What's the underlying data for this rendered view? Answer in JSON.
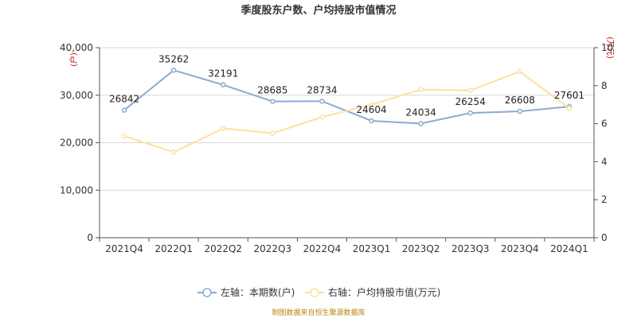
{
  "chart_data": {
    "type": "line",
    "title": "季度股东户数、户均持股市值情况",
    "categories": [
      "2021Q4",
      "2022Q1",
      "2022Q2",
      "2022Q3",
      "2022Q4",
      "2023Q1",
      "2023Q2",
      "2023Q3",
      "2023Q4",
      "2024Q1"
    ],
    "left_axis": {
      "unit": "(户)",
      "ylim": [
        0,
        40000
      ],
      "ticks": [
        0,
        10000,
        20000,
        30000,
        40000
      ],
      "tick_labels": [
        "0",
        "10,000",
        "20,000",
        "30,000",
        "40,000"
      ]
    },
    "right_axis": {
      "unit": "(万元)",
      "ylim": [
        0,
        10
      ],
      "ticks": [
        0,
        2,
        4,
        6,
        8,
        10
      ],
      "tick_labels": [
        "0",
        "2",
        "4",
        "6",
        "8",
        "10"
      ]
    },
    "series": [
      {
        "name": "左轴：本期数(户)",
        "axis": "left",
        "color": "#8eaad1",
        "values": [
          26842,
          35262,
          32191,
          28685,
          28734,
          24604,
          24034,
          26254,
          26608,
          27601
        ],
        "data_labels": [
          "26842",
          "35262",
          "32191",
          "28685",
          "28734",
          "24604",
          "24034",
          "26254",
          "26608",
          "27601"
        ]
      },
      {
        "name": "右轴：户均持股市值(万元)",
        "axis": "right",
        "color": "#fde0a0",
        "values": [
          5.35,
          4.5,
          5.75,
          5.5,
          6.35,
          7.0,
          7.8,
          7.75,
          8.75,
          6.8
        ]
      }
    ],
    "grid": true,
    "legend_position": "bottom",
    "source": "制图数据来自恒生聚源数据库"
  }
}
